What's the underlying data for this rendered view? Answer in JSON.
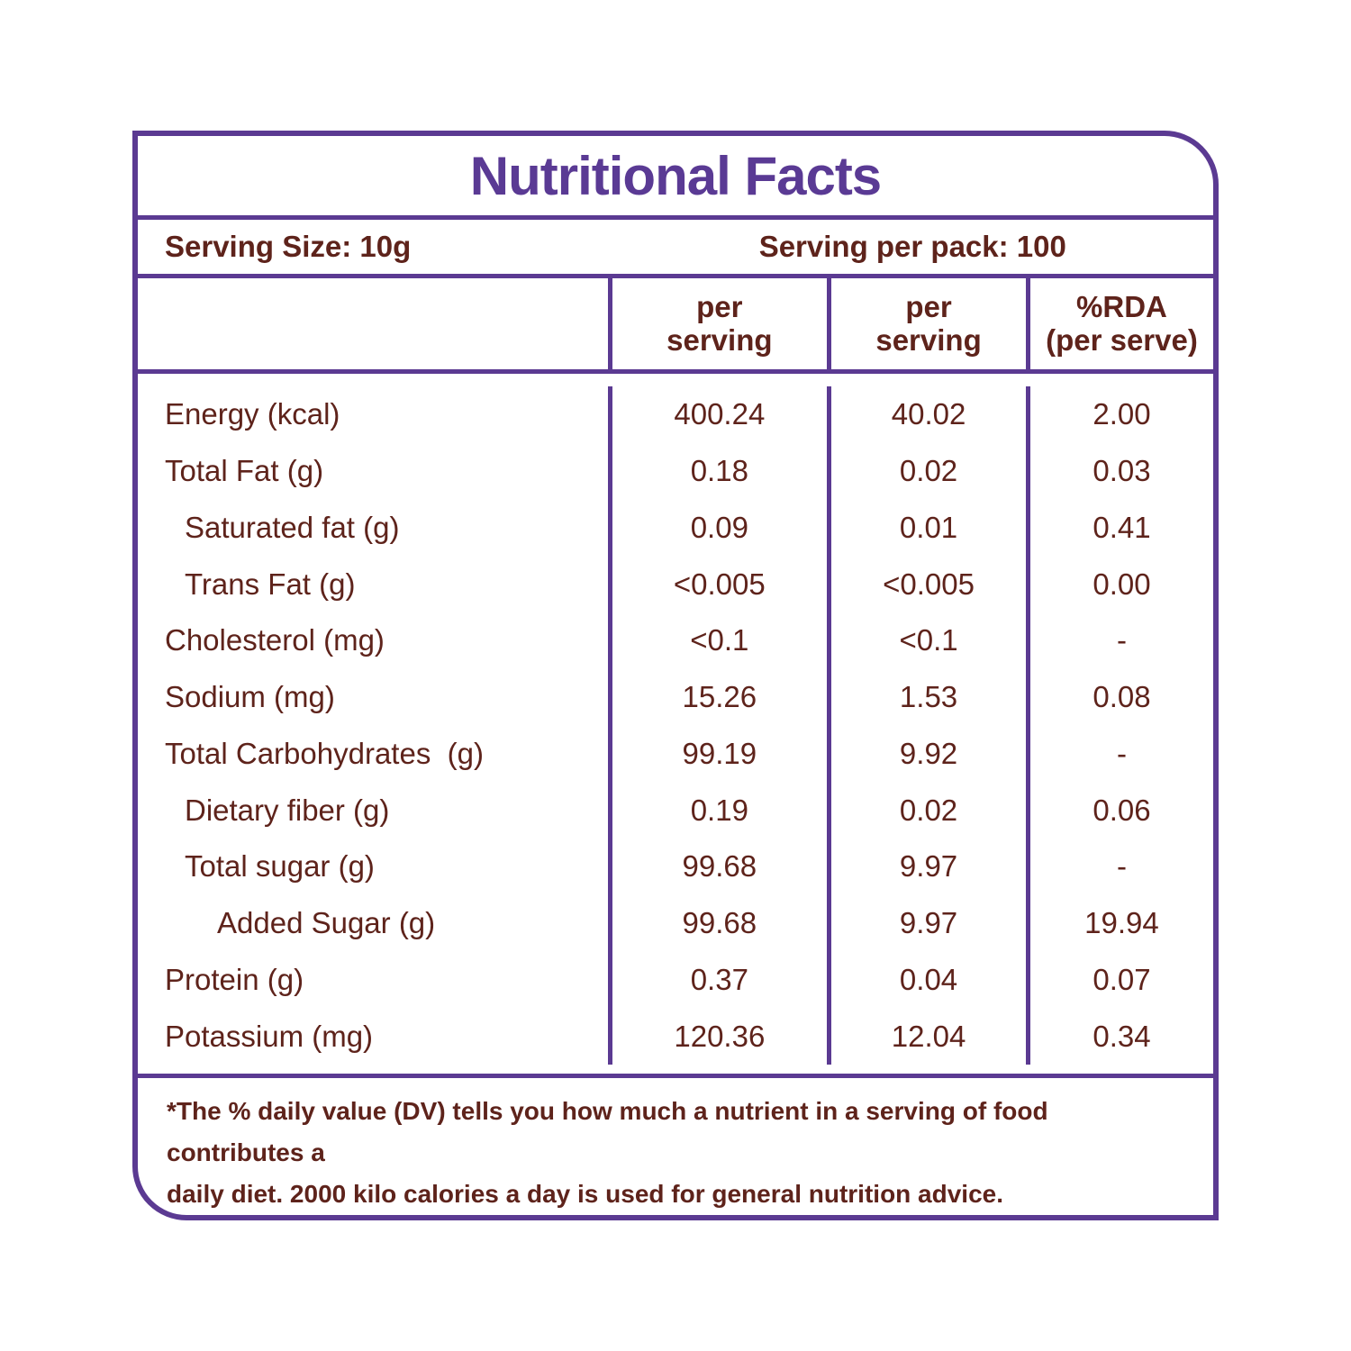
{
  "colors": {
    "accent_purple": "#5b3a92",
    "title_purple": "#5a3a94",
    "text_maroon": "#5e231b",
    "background": "#ffffff"
  },
  "title": "Nutritional Facts",
  "serving_info": {
    "serving_size": "Serving Size: 10g",
    "serving_per_pack": "Serving per pack: 100"
  },
  "table": {
    "column_headers": [
      {
        "line1": "per",
        "line2": "serving"
      },
      {
        "line1": "per",
        "line2": "serving"
      },
      {
        "line1": "%RDA",
        "line2": "(per serve)"
      }
    ],
    "rows": [
      {
        "label": "Energy (kcal)",
        "indent": 0,
        "values": [
          "400.24",
          "40.02",
          "2.00"
        ]
      },
      {
        "label": "Total Fat (g)",
        "indent": 0,
        "values": [
          "0.18",
          "0.02",
          "0.03"
        ]
      },
      {
        "label": "Saturated fat (g)",
        "indent": 1,
        "values": [
          "0.09",
          "0.01",
          "0.41"
        ]
      },
      {
        "label": "Trans Fat (g)",
        "indent": 1,
        "values": [
          "<0.005",
          "<0.005",
          "0.00"
        ]
      },
      {
        "label": "Cholesterol (mg)",
        "indent": 0,
        "values": [
          "<0.1",
          "<0.1",
          "-"
        ]
      },
      {
        "label": "Sodium (mg)",
        "indent": 0,
        "values": [
          "15.26",
          "1.53",
          "0.08"
        ]
      },
      {
        "label": "Total Carbohydrates  (g)",
        "indent": 0,
        "values": [
          "99.19",
          "9.92",
          "-"
        ]
      },
      {
        "label": "Dietary fiber (g)",
        "indent": 1,
        "values": [
          "0.19",
          "0.02",
          "0.06"
        ]
      },
      {
        "label": "Total sugar (g)",
        "indent": 1,
        "values": [
          "99.68",
          "9.97",
          "-"
        ]
      },
      {
        "label": "Added Sugar (g)",
        "indent": 2,
        "values": [
          "99.68",
          "9.97",
          "19.94"
        ]
      },
      {
        "label": "Protein (g)",
        "indent": 0,
        "values": [
          "0.37",
          "0.04",
          "0.07"
        ]
      },
      {
        "label": "Potassium (mg)",
        "indent": 0,
        "values": [
          "120.36",
          "12.04",
          "0.34"
        ]
      }
    ]
  },
  "footnote_lines": [
    "*The % daily value (DV) tells you how much a nutrient in a serving of food contributes a",
    "daily diet. 2000 kilo calories a day is used for general nutrition advice."
  ]
}
